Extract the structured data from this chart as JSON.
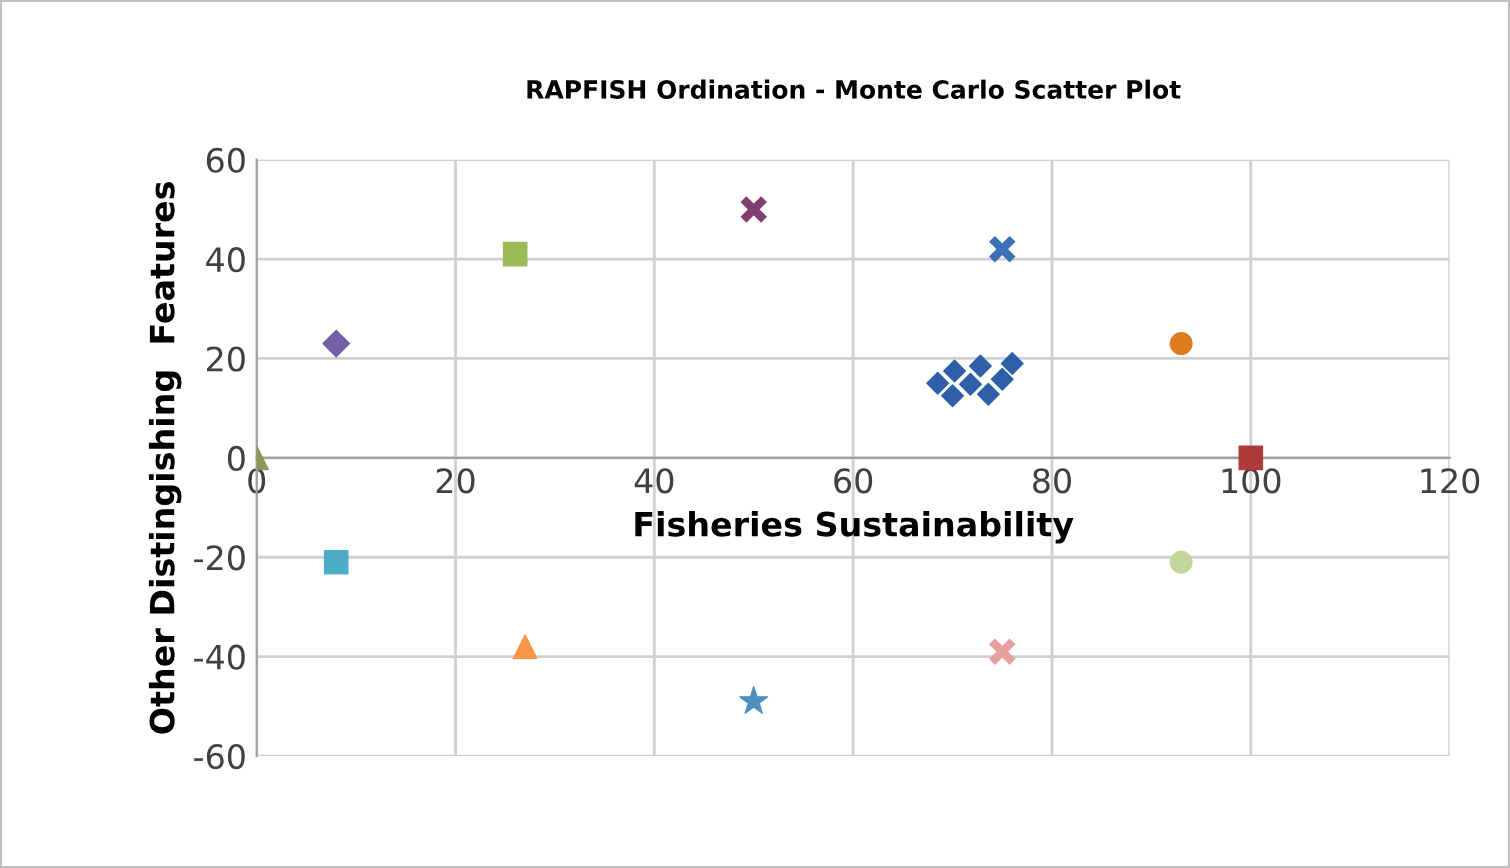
{
  "chart_data": {
    "type": "scatter",
    "title": "RAPFISH Ordination - Monte Carlo Scatter Plot",
    "xlabel": "Fisheries Sustainability",
    "ylabel": "Other Distingishing  Features",
    "xlim": [
      0,
      120
    ],
    "xticks": [
      0,
      20,
      40,
      60,
      80,
      100,
      120
    ],
    "ylim": [
      -60,
      60
    ],
    "yticks": [
      -60,
      -40,
      -20,
      0,
      20,
      40,
      60
    ],
    "grid": true,
    "series": [
      {
        "color": "#2e5fa8",
        "marker": "diamond",
        "x": [
          68.5,
          70,
          70.2,
          71.8,
          72.8,
          73.6,
          75,
          76
        ],
        "values": [
          15,
          12.5,
          17.5,
          14.8,
          18.5,
          12.8,
          15.8,
          19
        ]
      },
      {
        "color": "#b03a3a",
        "marker": "square",
        "x": [
          100
        ],
        "values": [
          0
        ]
      },
      {
        "color": "#8a9a5b",
        "marker": "triangle",
        "x": [
          0
        ],
        "values": [
          0
        ]
      },
      {
        "color": "#7f3f6f",
        "marker": "cross",
        "x": [
          50
        ],
        "values": [
          50
        ]
      },
      {
        "color": "#4f8fbf",
        "marker": "star",
        "x": [
          50
        ],
        "values": [
          -49
        ]
      },
      {
        "color": "#7060a8",
        "marker": "diamond",
        "x": [
          8
        ],
        "values": [
          23
        ]
      },
      {
        "color": "#9bbb59",
        "marker": "square",
        "x": [
          26
        ],
        "values": [
          41
        ]
      },
      {
        "color": "#3b6fb6",
        "marker": "cross",
        "x": [
          75
        ],
        "values": [
          42
        ]
      },
      {
        "color": "#e07b20",
        "marker": "circle",
        "x": [
          93
        ],
        "values": [
          23
        ]
      },
      {
        "color": "#4bacc6",
        "marker": "square",
        "x": [
          8
        ],
        "values": [
          -21
        ]
      },
      {
        "color": "#f79646",
        "marker": "triangle",
        "x": [
          27
        ],
        "values": [
          -38
        ]
      },
      {
        "color": "#c3d69b",
        "marker": "circle",
        "x": [
          93
        ],
        "values": [
          -21
        ]
      },
      {
        "color": "#e6a0a0",
        "marker": "cross",
        "x": [
          75
        ],
        "values": [
          -39
        ]
      }
    ]
  }
}
